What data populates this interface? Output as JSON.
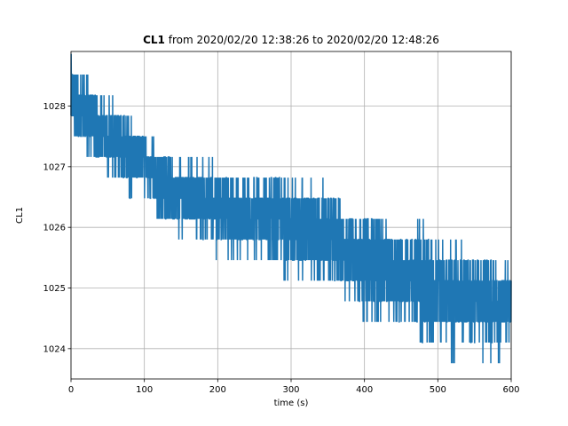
{
  "chart_data": {
    "type": "line",
    "title_bold": "CL1",
    "title_rest": " from 2020/02/20 12:38:26 to 2020/02/20 12:48:26",
    "xlabel": "time (s)",
    "ylabel": "CL1",
    "xlim": [
      0,
      600
    ],
    "ylim": [
      1023.5,
      1028.9
    ],
    "x_ticks": [
      0,
      100,
      200,
      300,
      400,
      500,
      600
    ],
    "y_ticks": [
      1024,
      1025,
      1026,
      1027,
      1028
    ],
    "grid": true,
    "legend": "none",
    "series_color": "#1f77b4",
    "series": [
      {
        "x": [
          0,
          20,
          40,
          60,
          80,
          100,
          120,
          140,
          160,
          180,
          200,
          220,
          240,
          260,
          280,
          300,
          320,
          340,
          360,
          380,
          400,
          420,
          440,
          460,
          480,
          500,
          520,
          540,
          560,
          580,
          600
        ],
        "y_low": [
          1027.6,
          1027.3,
          1027.1,
          1026.9,
          1026.8,
          1026.8,
          1026.2,
          1026.1,
          1026.0,
          1025.9,
          1025.8,
          1025.7,
          1025.7,
          1025.6,
          1025.5,
          1025.4,
          1025.3,
          1025.2,
          1025.1,
          1024.9,
          1024.8,
          1024.7,
          1024.6,
          1024.5,
          1024.4,
          1024.4,
          1024.3,
          1024.2,
          1024.2,
          1024.1,
          1024.1
        ],
        "y_high": [
          1028.7,
          1028.4,
          1028.1,
          1028.0,
          1027.8,
          1027.4,
          1027.3,
          1027.0,
          1027.0,
          1027.0,
          1026.9,
          1026.7,
          1026.7,
          1026.7,
          1026.7,
          1026.7,
          1026.6,
          1026.4,
          1026.4,
          1026.1,
          1026.1,
          1026.1,
          1025.8,
          1025.8,
          1025.8,
          1025.6,
          1025.5,
          1025.4,
          1025.4,
          1025.3,
          1025.4
        ],
        "y_min": [
          1027.7,
          1027.3,
          1027.0,
          1026.9,
          1026.6,
          1026.4,
          1026.0,
          1026.0,
          1025.7,
          1025.7,
          1025.6,
          1025.5,
          1025.5,
          1025.3,
          1025.4,
          1025.1,
          1025.2,
          1025.0,
          1024.9,
          1024.7,
          1024.4,
          1024.6,
          1024.4,
          1024.4,
          1024.1,
          1024.3,
          1023.8,
          1024.1,
          1023.8,
          1023.8,
          1023.8
        ],
        "y_max": [
          1028.7,
          1028.4,
          1028.1,
          1028.1,
          1027.8,
          1027.4,
          1027.3,
          1027.0,
          1027.0,
          1027.0,
          1027.0,
          1026.7,
          1026.7,
          1026.7,
          1026.7,
          1026.7,
          1026.7,
          1026.7,
          1026.4,
          1026.1,
          1026.1,
          1026.1,
          1025.8,
          1025.8,
          1026.1,
          1025.8,
          1025.8,
          1025.5,
          1025.5,
          1025.5,
          1025.5
        ]
      }
    ]
  }
}
